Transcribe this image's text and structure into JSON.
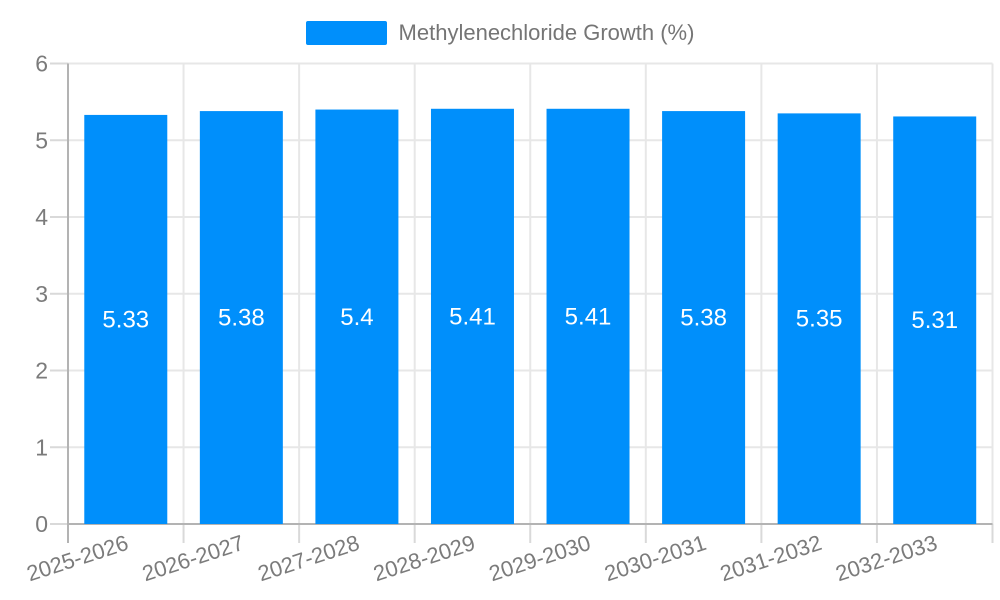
{
  "chart_data": {
    "type": "bar",
    "title": "Methylenechloride Growth (%)",
    "categories": [
      "2025-2026",
      "2026-2027",
      "2027-2028",
      "2028-2029",
      "2029-2030",
      "2030-2031",
      "2031-2032",
      "2032-2033"
    ],
    "series": [
      {
        "name": "Methylenechloride Growth (%)",
        "values": [
          5.33,
          5.38,
          5.4,
          5.41,
          5.41,
          5.38,
          5.35,
          5.31
        ]
      }
    ],
    "data_labels": [
      "5.33",
      "5.38",
      "5.4",
      "5.41",
      "5.41",
      "5.38",
      "5.35",
      "5.31"
    ],
    "xlabel": "",
    "ylabel": "",
    "ylim": [
      0,
      6
    ],
    "yticks": [
      0,
      1,
      2,
      3,
      4,
      5,
      6
    ],
    "grid": true,
    "legend_position": "top",
    "x_label_rotation_deg": -18,
    "colors": {
      "bar": "#008FFB",
      "grid": "#e7e7e7",
      "tick": "#d9d9d9",
      "axis": "#b3b3b3",
      "axis_label": "#7b7b7b",
      "legend_label": "#757575",
      "data_label": "#ffffff",
      "background": "#ffffff"
    }
  }
}
